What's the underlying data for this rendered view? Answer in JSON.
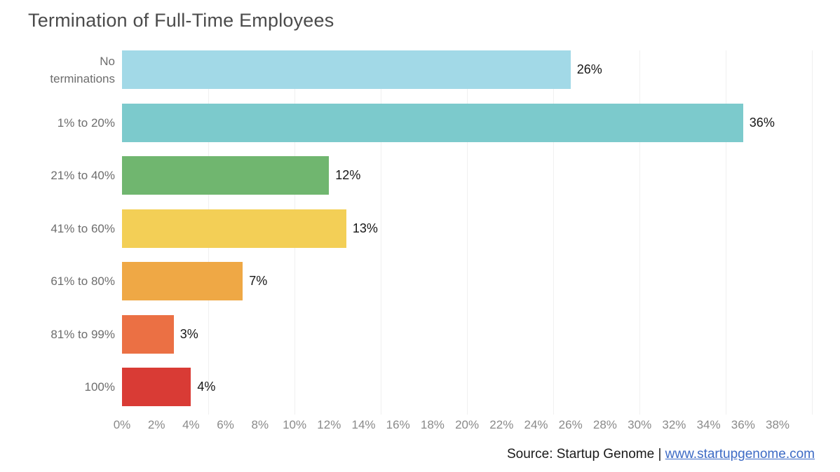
{
  "title": "Termination of Full-Time Employees",
  "source": {
    "prefix": "Source: Startup Genome | ",
    "link_text": "www.startupgenome.com"
  },
  "colors": {
    "title_text": "#4b4b4b",
    "category_text": "#6d6d6d",
    "axis_text": "#8a8a8a",
    "value_text": "#161616",
    "gridline": "#f0f0f0",
    "link": "#3d6bc5"
  },
  "chart_data": {
    "type": "bar",
    "orientation": "horizontal",
    "title": "Termination of Full-Time Employees",
    "categories": [
      "No terminations",
      "1% to 20%",
      "21% to 40%",
      "41% to 60%",
      "61% to 80%",
      "81% to 99%",
      "100%"
    ],
    "values": [
      26,
      36,
      12,
      13,
      7,
      3,
      4
    ],
    "value_labels": [
      "26%",
      "36%",
      "12%",
      "13%",
      "7%",
      "3%",
      "4%"
    ],
    "bar_colors": [
      "#a2d9e7",
      "#7ccacc",
      "#70b66f",
      "#f3cf56",
      "#efa845",
      "#eb7044",
      "#d93b35"
    ],
    "xlabel": "",
    "ylabel": "",
    "x_axis": {
      "min": 0,
      "max": 38,
      "tick_step": 2,
      "tick_values": [
        0,
        2,
        4,
        6,
        8,
        10,
        12,
        14,
        16,
        18,
        20,
        22,
        24,
        26,
        28,
        30,
        32,
        34,
        36,
        38
      ],
      "tick_labels": [
        "0%",
        "2%",
        "4%",
        "6%",
        "8%",
        "10%",
        "12%",
        "14%",
        "16%",
        "18%",
        "20%",
        "22%",
        "24%",
        "26%",
        "28%",
        "30%",
        "32%",
        "34%",
        "36%",
        "38%"
      ]
    },
    "gridlines": {
      "values": [
        5,
        10,
        15,
        20,
        25,
        30,
        35,
        40
      ],
      "step": 5
    },
    "legend": null,
    "grid": "vertical-only"
  }
}
